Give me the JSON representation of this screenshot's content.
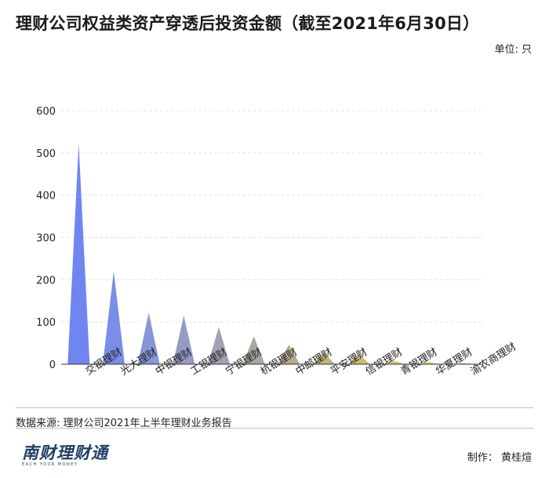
{
  "title": "理财公司权益类资产穿透后投资金额（截至2021年6月30日）",
  "unit_label": "单位: 只",
  "source": "数据来源: 理财公司2021年上半年理财业务报告",
  "logo": {
    "text": "南财理财通",
    "subtext": "EACH YOUR MONEY"
  },
  "credit": "制作：   黄桂煊",
  "chart_data": {
    "type": "bar",
    "style": "pointed-triangle",
    "categories": [
      "交银理财",
      "光大理财",
      "中银理财",
      "工银理财",
      "宁银理财",
      "杭银理财",
      "中邮理财",
      "平安理财",
      "信银理财",
      "青银理财",
      "华夏理财",
      "渝农商理财"
    ],
    "values": [
      522,
      220,
      122,
      115,
      88,
      66,
      46,
      28,
      24,
      8,
      5,
      3
    ],
    "colors": [
      "#6f86f0",
      "#7a8ee6",
      "#8796d8",
      "#949cc6",
      "#a1a2b4",
      "#aca69f",
      "#b6ab8b",
      "#c2b27c",
      "#ccb970",
      "#d6c064",
      "#dec75b",
      "#e6cd55"
    ],
    "yticks": [
      0,
      100,
      200,
      300,
      400,
      500,
      600
    ],
    "ylim": [
      0,
      600
    ],
    "grid": true,
    "xlabel": "",
    "ylabel": ""
  }
}
